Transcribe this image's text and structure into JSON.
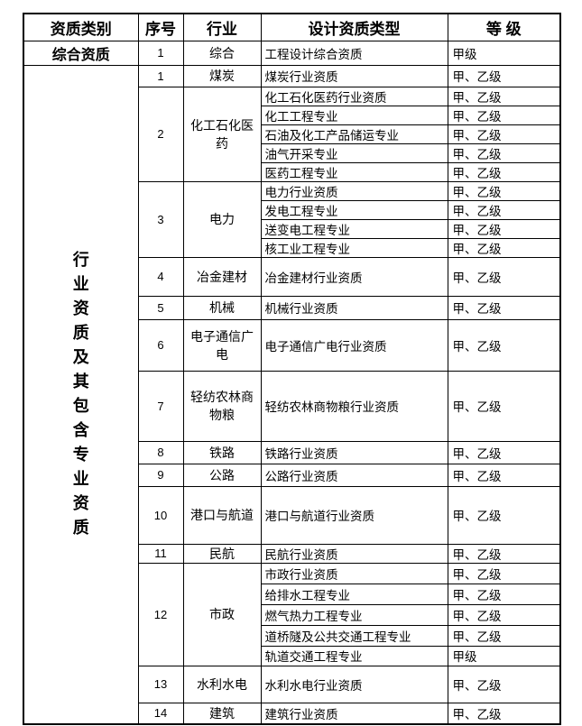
{
  "colors": {
    "background": "#ffffff",
    "text": "#000000",
    "border": "#000000"
  },
  "table": {
    "headers": [
      "资质类别",
      "序号",
      "行业",
      "设计资质类型",
      "等 级"
    ],
    "sections": [
      {
        "category": "综合资质",
        "vertical": false,
        "groups": [
          {
            "no": "1",
            "industry": "综合",
            "rows": [
              {
                "type": "工程设计综合资质",
                "grade": "甲级"
              }
            ]
          }
        ]
      },
      {
        "category": "行业资质及其包含专业资质",
        "vertical": true,
        "groups": [
          {
            "no": "1",
            "industry": "煤炭",
            "rows": [
              {
                "type": "煤炭行业资质",
                "grade": "甲、乙级"
              }
            ]
          },
          {
            "no": "2",
            "industry": "化工石化医药",
            "rows": [
              {
                "type": "化工石化医药行业资质",
                "grade": "甲、乙级"
              },
              {
                "type": "化工工程专业",
                "grade": "甲、乙级"
              },
              {
                "type": "石油及化工产品储运专业",
                "grade": "甲、乙级"
              },
              {
                "type": "油气开采专业",
                "grade": "甲、乙级"
              },
              {
                "type": "医药工程专业",
                "grade": "甲、乙级"
              }
            ]
          },
          {
            "no": "3",
            "industry": "电力",
            "rows": [
              {
                "type": "电力行业资质",
                "grade": "甲、乙级"
              },
              {
                "type": "发电工程专业",
                "grade": "甲、乙级"
              },
              {
                "type": "送变电工程专业",
                "grade": "甲、乙级"
              },
              {
                "type": "核工业工程专业",
                "grade": "甲、乙级"
              }
            ]
          },
          {
            "no": "4",
            "industry": "冶金建材",
            "rows": [
              {
                "type": "冶金建材行业资质",
                "grade": "甲、乙级"
              }
            ]
          },
          {
            "no": "5",
            "industry": "机械",
            "rows": [
              {
                "type": "机械行业资质",
                "grade": "甲、乙级"
              }
            ]
          },
          {
            "no": "6",
            "industry": "电子通信广电",
            "rows": [
              {
                "type": "电子通信广电行业资质",
                "grade": "甲、乙级"
              }
            ]
          },
          {
            "no": "7",
            "industry": "轻纺农林商物粮",
            "rows": [
              {
                "type": "轻纺农林商物粮行业资质",
                "grade": "甲、乙级"
              }
            ]
          },
          {
            "no": "8",
            "industry": "铁路",
            "rows": [
              {
                "type": "铁路行业资质",
                "grade": "甲、乙级"
              }
            ]
          },
          {
            "no": "9",
            "industry": "公路",
            "rows": [
              {
                "type": "公路行业资质",
                "grade": "甲、乙级"
              }
            ]
          },
          {
            "no": "10",
            "industry": "港口与航道",
            "rows": [
              {
                "type": "港口与航道行业资质",
                "grade": "甲、乙级"
              }
            ]
          },
          {
            "no": "11",
            "industry": "民航",
            "rows": [
              {
                "type": "民航行业资质",
                "grade": "甲、乙级"
              }
            ]
          },
          {
            "no": "12",
            "industry": "市政",
            "rows": [
              {
                "type": "市政行业资质",
                "grade": "甲、乙级"
              },
              {
                "type": "给排水工程专业",
                "grade": "甲、乙级"
              },
              {
                "type": "燃气热力工程专业",
                "grade": "甲、乙级"
              },
              {
                "type": "道桥隧及公共交通工程专业",
                "grade": "甲、乙级"
              },
              {
                "type": "轨道交通工程专业",
                "grade": "甲级"
              }
            ]
          },
          {
            "no": "13",
            "industry": "水利水电",
            "rows": [
              {
                "type": "水利水电行业资质",
                "grade": "甲、乙级"
              }
            ]
          },
          {
            "no": "14",
            "industry": "建筑",
            "rows": [
              {
                "type": "建筑行业资质",
                "grade": "甲、乙级"
              }
            ]
          }
        ]
      }
    ]
  }
}
